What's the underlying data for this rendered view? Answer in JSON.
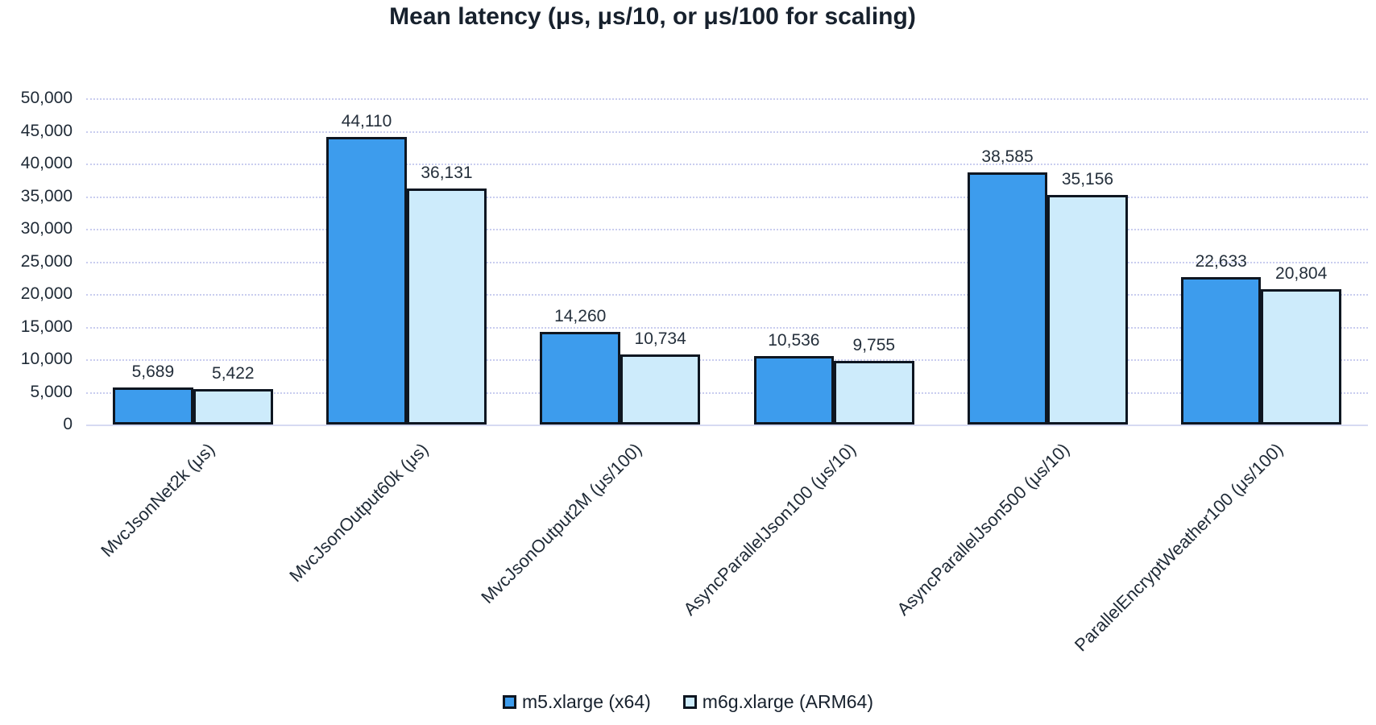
{
  "title": "Mean latency (μs, μs/10, or μs/100 for scaling)",
  "chart_data": {
    "type": "bar",
    "title": "Mean latency (μs, μs/10, or μs/100 for scaling)",
    "categories": [
      "MvcJsonNet2k (μs)",
      "MvcJsonOutput60k (μs)",
      "MvcJsonOutput2M (μs/100)",
      "AsyncParallelJson100 (μs/10)",
      "AsyncParallelJson500 (μs/10)",
      "ParallelEncryptWeather100 (μs/100)"
    ],
    "series": [
      {
        "name": "m5.xlarge (x64)",
        "color": "#3D9CED",
        "values": [
          5689,
          44110,
          14260,
          10536,
          38585,
          22633
        ],
        "labels": [
          "5,689",
          "44,110",
          "14,260",
          "10,536",
          "38,585",
          "22,633"
        ]
      },
      {
        "name": "m6g.xlarge (ARM64)",
        "color": "#CDEBFB",
        "values": [
          5422,
          36131,
          10734,
          9755,
          35156,
          20804
        ],
        "labels": [
          "5,422",
          "36,131",
          "10,734",
          "9,755",
          "35,156",
          "20,804"
        ]
      }
    ],
    "ylim": [
      0,
      50000
    ],
    "ytick_step": 5000,
    "ytick_labels": [
      "50,000",
      "45,000",
      "40,000",
      "35,000",
      "30,000",
      "25,000",
      "20,000",
      "15,000",
      "10,000",
      "5,000",
      "0"
    ],
    "grid": "horizontal-dotted",
    "legend_position": "bottom",
    "xlabel": "",
    "ylabel": "",
    "colors": {
      "bar_border": "#0E1621",
      "gridline": "#C9CDEF",
      "baseline": "#D6DAF2",
      "text": "#1F2A36",
      "title_text": "#17212D",
      "background": "#FFFFFF"
    }
  }
}
